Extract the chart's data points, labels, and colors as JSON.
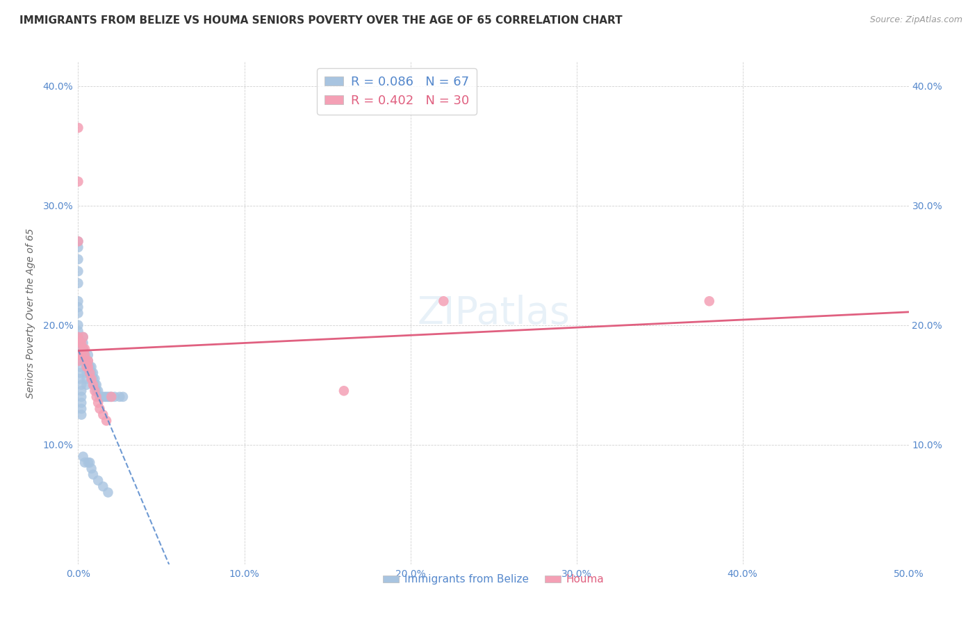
{
  "title": "IMMIGRANTS FROM BELIZE VS HOUMA SENIORS POVERTY OVER THE AGE OF 65 CORRELATION CHART",
  "source": "Source: ZipAtlas.com",
  "ylabel": "Seniors Poverty Over the Age of 65",
  "xlim": [
    0.0,
    0.5
  ],
  "ylim": [
    0.0,
    0.42
  ],
  "xticks": [
    0.0,
    0.1,
    0.2,
    0.3,
    0.4,
    0.5
  ],
  "yticks": [
    0.0,
    0.1,
    0.2,
    0.3,
    0.4
  ],
  "xtick_labels": [
    "0.0%",
    "10.0%",
    "20.0%",
    "30.0%",
    "40.0%",
    "50.0%"
  ],
  "ytick_labels_left": [
    "",
    "10.0%",
    "20.0%",
    "30.0%",
    "40.0%"
  ],
  "ytick_labels_right": [
    "",
    "10.0%",
    "20.0%",
    "30.0%",
    "40.0%"
  ],
  "grid_color": "#cccccc",
  "background_color": "#ffffff",
  "watermark_text": "ZIPatlas",
  "blue_R": 0.086,
  "blue_N": 67,
  "pink_R": 0.402,
  "pink_N": 30,
  "blue_color": "#a8c4e0",
  "pink_color": "#f4a0b5",
  "blue_line_color": "#5588cc",
  "pink_line_color": "#e06080",
  "blue_scatter_x": [
    0.0,
    0.0,
    0.0,
    0.0,
    0.0,
    0.0,
    0.0,
    0.0,
    0.0,
    0.0,
    0.0,
    0.0,
    0.0,
    0.0,
    0.001,
    0.001,
    0.001,
    0.001,
    0.002,
    0.002,
    0.002,
    0.002,
    0.002,
    0.002,
    0.003,
    0.003,
    0.003,
    0.004,
    0.004,
    0.005,
    0.005,
    0.005,
    0.005,
    0.006,
    0.006,
    0.006,
    0.007,
    0.007,
    0.008,
    0.008,
    0.009,
    0.009,
    0.01,
    0.01,
    0.011,
    0.011,
    0.012,
    0.013,
    0.014,
    0.015,
    0.016,
    0.017,
    0.018,
    0.019,
    0.02,
    0.022,
    0.025,
    0.027,
    0.003,
    0.004,
    0.006,
    0.007,
    0.008,
    0.009,
    0.012,
    0.015,
    0.018
  ],
  "blue_scatter_y": [
    0.27,
    0.265,
    0.255,
    0.245,
    0.235,
    0.22,
    0.215,
    0.21,
    0.2,
    0.195,
    0.19,
    0.185,
    0.18,
    0.175,
    0.17,
    0.165,
    0.16,
    0.155,
    0.15,
    0.145,
    0.14,
    0.135,
    0.13,
    0.125,
    0.19,
    0.185,
    0.18,
    0.175,
    0.17,
    0.165,
    0.16,
    0.155,
    0.15,
    0.175,
    0.17,
    0.165,
    0.165,
    0.16,
    0.165,
    0.16,
    0.16,
    0.155,
    0.155,
    0.15,
    0.15,
    0.145,
    0.145,
    0.14,
    0.14,
    0.14,
    0.14,
    0.14,
    0.14,
    0.14,
    0.14,
    0.14,
    0.14,
    0.14,
    0.09,
    0.085,
    0.085,
    0.085,
    0.08,
    0.075,
    0.07,
    0.065,
    0.06
  ],
  "pink_scatter_x": [
    0.0,
    0.0,
    0.0,
    0.0,
    0.0,
    0.001,
    0.001,
    0.002,
    0.002,
    0.003,
    0.003,
    0.004,
    0.004,
    0.005,
    0.005,
    0.006,
    0.006,
    0.007,
    0.008,
    0.009,
    0.01,
    0.011,
    0.012,
    0.013,
    0.015,
    0.017,
    0.02,
    0.16,
    0.22,
    0.38
  ],
  "pink_scatter_y": [
    0.365,
    0.32,
    0.27,
    0.19,
    0.17,
    0.185,
    0.175,
    0.185,
    0.175,
    0.19,
    0.18,
    0.18,
    0.175,
    0.17,
    0.165,
    0.17,
    0.165,
    0.16,
    0.155,
    0.15,
    0.145,
    0.14,
    0.135,
    0.13,
    0.125,
    0.12,
    0.14,
    0.145,
    0.22,
    0.22
  ],
  "legend_blue_label": "Immigrants from Belize",
  "legend_pink_label": "Houma",
  "title_fontsize": 11,
  "axis_fontsize": 10,
  "tick_fontsize": 10,
  "tick_color": "#5588cc",
  "source_fontsize": 9
}
